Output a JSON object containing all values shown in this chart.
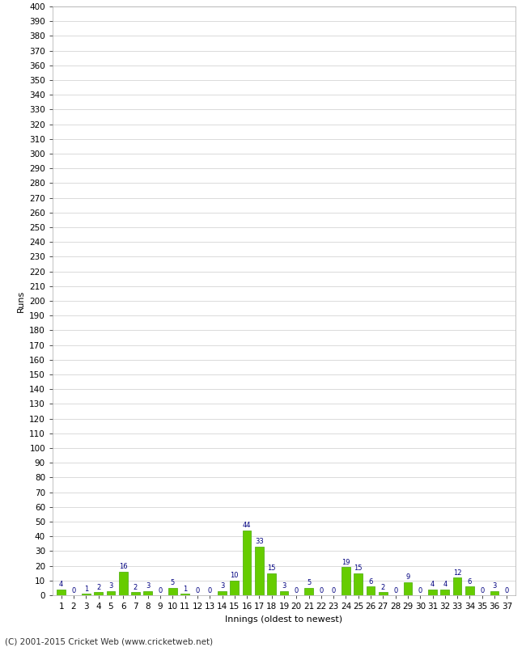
{
  "xlabel": "Innings (oldest to newest)",
  "ylabel": "Runs",
  "categories": [
    1,
    2,
    3,
    4,
    5,
    6,
    7,
    8,
    9,
    10,
    11,
    12,
    13,
    14,
    15,
    16,
    17,
    18,
    19,
    20,
    21,
    22,
    23,
    24,
    25,
    26,
    27,
    28,
    29,
    30,
    31,
    32,
    33,
    34,
    35,
    36,
    37
  ],
  "values": [
    4,
    0,
    1,
    2,
    3,
    16,
    2,
    3,
    0,
    5,
    1,
    0,
    0,
    3,
    10,
    44,
    33,
    15,
    3,
    0,
    5,
    0,
    0,
    19,
    15,
    6,
    2,
    0,
    9,
    0,
    4,
    4,
    12,
    6,
    0,
    3,
    0
  ],
  "bar_color": "#66cc00",
  "bar_edge_color": "#44aa00",
  "label_color": "#000080",
  "background_color": "#ffffff",
  "grid_color": "#cccccc",
  "ylim": [
    0,
    400
  ],
  "label_fontsize": 6.0,
  "ytick_fontsize": 7.5,
  "xtick_fontsize": 7.5,
  "axis_label_fontsize": 8,
  "footer_text": "(C) 2001-2015 Cricket Web (www.cricketweb.net)",
  "footer_fontsize": 7.5
}
